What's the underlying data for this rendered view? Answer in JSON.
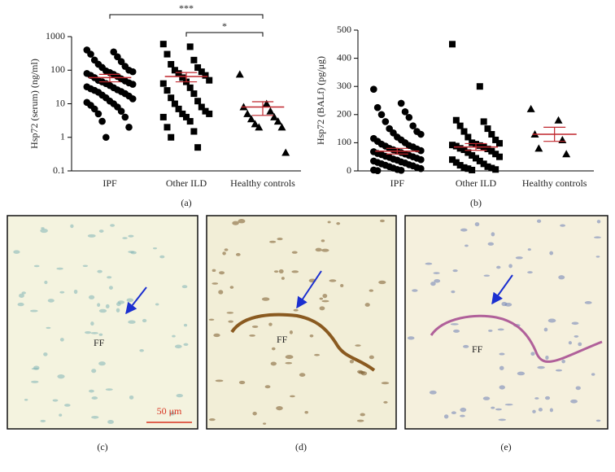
{
  "chart_data": [
    {
      "type": "dot",
      "panel": "(a)",
      "ylabel": "Hsp72 (serum) (ng/ml)",
      "yscale": "log",
      "ylim": [
        0.1,
        1000
      ],
      "yticks": [
        0.1,
        1,
        10,
        100,
        1000
      ],
      "categories": [
        "IPF",
        "Other ILD",
        "Healthy controls"
      ],
      "markers": [
        "circle",
        "square",
        "triangle"
      ],
      "values": [
        [
          400,
          350,
          300,
          250,
          200,
          180,
          150,
          130,
          120,
          100,
          95,
          90,
          85,
          80,
          75,
          70,
          65,
          60,
          55,
          50,
          48,
          45,
          42,
          40,
          38,
          35,
          32,
          30,
          28,
          26,
          25,
          23,
          22,
          20,
          18,
          17,
          15,
          14,
          12,
          11,
          10,
          9,
          8,
          7,
          6,
          5,
          4,
          3,
          2,
          1
        ],
        [
          600,
          500,
          300,
          200,
          150,
          120,
          100,
          90,
          80,
          70,
          60,
          50,
          45,
          40,
          30,
          25,
          20,
          15,
          12,
          10,
          8,
          7,
          6,
          5,
          5,
          4,
          4,
          3,
          2,
          1.5,
          1,
          0.5
        ],
        [
          75,
          10,
          8,
          6,
          5,
          4,
          3.5,
          3,
          2.5,
          2,
          2,
          0.35
        ]
      ],
      "means": [
        60,
        65,
        8
      ],
      "sem": [
        15,
        20,
        3.5
      ],
      "mean_color": "#c0272d",
      "annotations": [
        {
          "from": 0,
          "to": 2,
          "label": "***"
        },
        {
          "from": 1,
          "to": 2,
          "label": "*"
        }
      ]
    },
    {
      "type": "dot",
      "panel": "(b)",
      "ylabel": "Hsp72 (BALf) (pg/μg)",
      "yscale": "linear",
      "ylim": [
        0,
        500
      ],
      "yticks": [
        0,
        100,
        200,
        300,
        400,
        500
      ],
      "categories": [
        "IPF",
        "Other ILD",
        "Healthy controls"
      ],
      "markers": [
        "circle",
        "square",
        "triangle"
      ],
      "values": [
        [
          290,
          240,
          225,
          210,
          200,
          190,
          175,
          160,
          150,
          140,
          135,
          130,
          120,
          115,
          110,
          105,
          100,
          95,
          90,
          88,
          85,
          80,
          78,
          75,
          72,
          70,
          68,
          65,
          62,
          60,
          58,
          55,
          52,
          50,
          48,
          45,
          42,
          40,
          38,
          35,
          32,
          30,
          28,
          25,
          22,
          20,
          18,
          15,
          12,
          10,
          8,
          5,
          3,
          2,
          1
        ],
        [
          450,
          300,
          180,
          175,
          160,
          150,
          140,
          130,
          120,
          110,
          100,
          98,
          95,
          92,
          90,
          88,
          85,
          80,
          78,
          75,
          70,
          65,
          60,
          55,
          50,
          45,
          40,
          35,
          30,
          25,
          20,
          15,
          12,
          10,
          8,
          5,
          3
        ],
        [
          220,
          180,
          130,
          110,
          80,
          60
        ]
      ],
      "means": [
        70,
        85,
        130
      ],
      "sem": [
        10,
        12,
        25
      ],
      "mean_color": "#c0272d"
    }
  ],
  "micrographs": [
    {
      "panel": "(c)",
      "label": "FF",
      "scale_bar": "50 μm"
    },
    {
      "panel": "(d)",
      "label": "FF"
    },
    {
      "panel": "(e)",
      "label": "FF"
    }
  ]
}
